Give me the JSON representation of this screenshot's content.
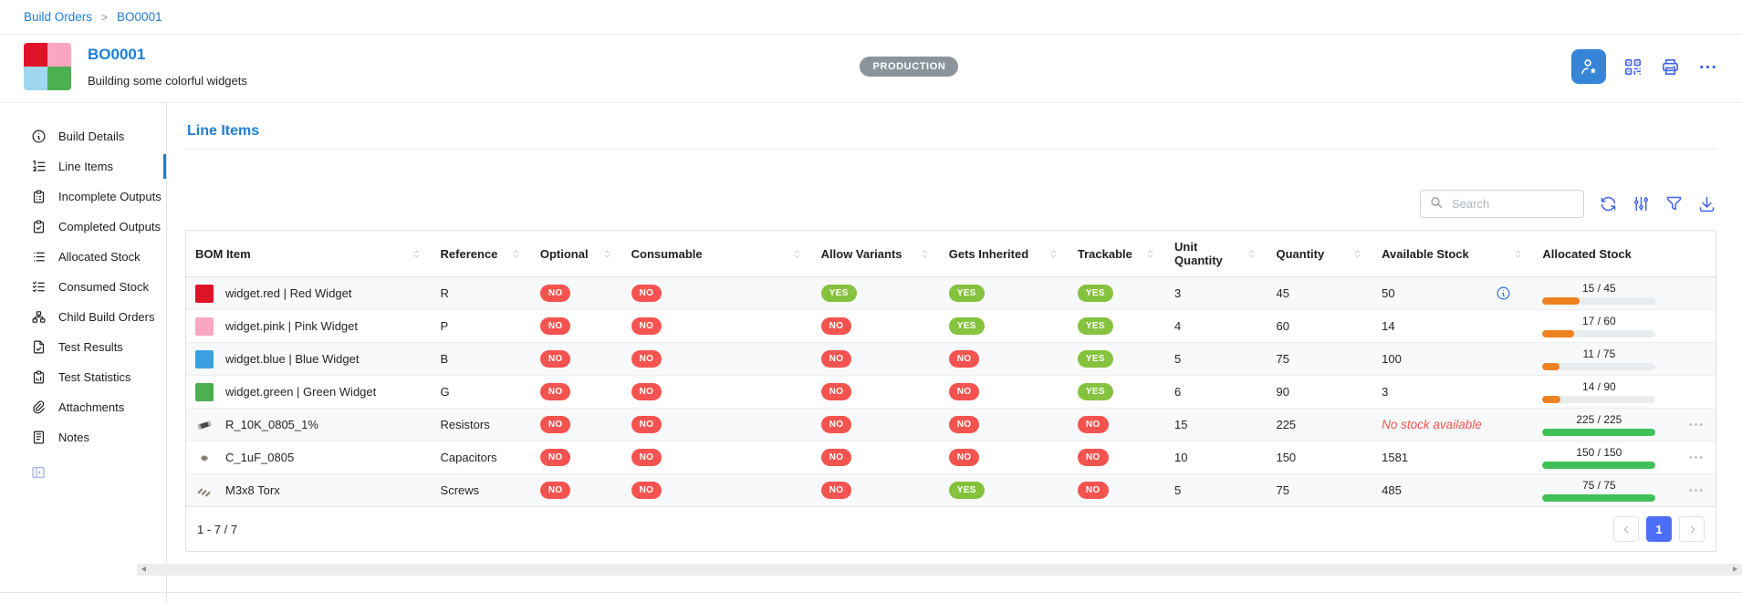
{
  "colors": {
    "accent_blue": "#1c7ed6",
    "toolbar_blue": "#4263eb",
    "admin_button_bg": "#3685d7",
    "pagination_blue": "#4c6ef5",
    "yes_badge": "#85c23d",
    "no_badge": "#f4534f",
    "progress_orange": "#ef8220",
    "progress_green": "#40c057",
    "status_badge_bg": "#8b939b",
    "row_stripe": "#f8f9fa"
  },
  "breadcrumb": {
    "separator": ">",
    "items": [
      "Build Orders",
      "BO0001"
    ]
  },
  "header": {
    "title": "BO0001",
    "subtitle": "Building some colorful widgets",
    "status_badge": "PRODUCTION",
    "thumbnail_colors": [
      "#e01227",
      "#f9a7c0",
      "#9fd7ef",
      "#4caf50"
    ],
    "actions": [
      {
        "name": "admin-user-button",
        "icon": "user-star-icon",
        "primary": true
      },
      {
        "name": "qr-code-button",
        "icon": "qr-code-icon"
      },
      {
        "name": "print-button",
        "icon": "printer-icon"
      },
      {
        "name": "more-actions-button",
        "icon": "ellipsis-icon"
      }
    ]
  },
  "sidebar": {
    "items": [
      {
        "label": "Build Details",
        "icon": "info-circle-icon",
        "active": false
      },
      {
        "label": "Line Items",
        "icon": "numbered-list-icon",
        "active": true
      },
      {
        "label": "Incomplete Outputs",
        "icon": "clipboard-list-icon",
        "active": false
      },
      {
        "label": "Completed Outputs",
        "icon": "clipboard-check-icon",
        "active": false
      },
      {
        "label": "Allocated Stock",
        "icon": "list-icon",
        "active": false
      },
      {
        "label": "Consumed Stock",
        "icon": "list-check-icon",
        "active": false
      },
      {
        "label": "Child Build Orders",
        "icon": "sitemap-icon",
        "active": false
      },
      {
        "label": "Test Results",
        "icon": "file-check-icon",
        "active": false
      },
      {
        "label": "Test Statistics",
        "icon": "clipboard-data-icon",
        "active": false
      },
      {
        "label": "Attachments",
        "icon": "paperclip-icon",
        "active": false
      },
      {
        "label": "Notes",
        "icon": "notes-icon",
        "active": false
      }
    ]
  },
  "panel": {
    "title": "Line Items",
    "search_placeholder": "Search",
    "toolbar": [
      {
        "name": "refresh-button",
        "icon": "refresh-icon"
      },
      {
        "name": "adjust-columns-button",
        "icon": "adjustments-icon"
      },
      {
        "name": "filter-button",
        "icon": "filter-icon"
      },
      {
        "name": "download-button",
        "icon": "download-icon"
      }
    ]
  },
  "table": {
    "columns": [
      {
        "label": "BOM Item",
        "sortable": true
      },
      {
        "label": "Reference",
        "sortable": true
      },
      {
        "label": "Optional",
        "sortable": true
      },
      {
        "label": "Consumable",
        "sortable": true
      },
      {
        "label": "Allow Variants",
        "sortable": true
      },
      {
        "label": "Gets Inherited",
        "sortable": true
      },
      {
        "label": "Trackable",
        "sortable": true
      },
      {
        "label": "Unit Quantity",
        "sortable": true
      },
      {
        "label": "Quantity",
        "sortable": true
      },
      {
        "label": "Available Stock",
        "sortable": true
      },
      {
        "label": "Allocated Stock",
        "sortable": false
      }
    ],
    "rows": [
      {
        "thumb": {
          "type": "color",
          "value": "#e01227"
        },
        "bom_item": "widget.red | Red Widget",
        "reference": "R",
        "optional": "NO",
        "consumable": "NO",
        "allow_variants": "YES",
        "gets_inherited": "YES",
        "trackable": "YES",
        "unit_quantity": "3",
        "quantity": "45",
        "available_stock": "50",
        "no_stock": false,
        "available_info": true,
        "allocated": {
          "label": "15 / 45",
          "percent": 33
        },
        "menu": false
      },
      {
        "thumb": {
          "type": "color",
          "value": "#f9a7c0"
        },
        "bom_item": "widget.pink | Pink Widget",
        "reference": "P",
        "optional": "NO",
        "consumable": "NO",
        "allow_variants": "NO",
        "gets_inherited": "YES",
        "trackable": "YES",
        "unit_quantity": "4",
        "quantity": "60",
        "available_stock": "14",
        "no_stock": false,
        "available_info": false,
        "allocated": {
          "label": "17 / 60",
          "percent": 28
        },
        "menu": false
      },
      {
        "thumb": {
          "type": "color",
          "value": "#3aa0e0"
        },
        "bom_item": "widget.blue | Blue Widget",
        "reference": "B",
        "optional": "NO",
        "consumable": "NO",
        "allow_variants": "NO",
        "gets_inherited": "NO",
        "trackable": "YES",
        "unit_quantity": "5",
        "quantity": "75",
        "available_stock": "100",
        "no_stock": false,
        "available_info": false,
        "allocated": {
          "label": "11 / 75",
          "percent": 15
        },
        "menu": false
      },
      {
        "thumb": {
          "type": "color",
          "value": "#4caf50"
        },
        "bom_item": "widget.green | Green Widget",
        "reference": "G",
        "optional": "NO",
        "consumable": "NO",
        "allow_variants": "NO",
        "gets_inherited": "NO",
        "trackable": "YES",
        "unit_quantity": "6",
        "quantity": "90",
        "available_stock": "3",
        "no_stock": false,
        "available_info": false,
        "allocated": {
          "label": "14 / 90",
          "percent": 16
        },
        "menu": false
      },
      {
        "thumb": {
          "type": "resistor"
        },
        "bom_item": "R_10K_0805_1%",
        "reference": "Resistors",
        "optional": "NO",
        "consumable": "NO",
        "allow_variants": "NO",
        "gets_inherited": "NO",
        "trackable": "NO",
        "unit_quantity": "15",
        "quantity": "225",
        "available_stock": "No stock available",
        "no_stock": true,
        "available_info": false,
        "allocated": {
          "label": "225 / 225",
          "percent": 100
        },
        "menu": true
      },
      {
        "thumb": {
          "type": "capacitor"
        },
        "bom_item": "C_1uF_0805",
        "reference": "Capacitors",
        "optional": "NO",
        "consumable": "NO",
        "allow_variants": "NO",
        "gets_inherited": "NO",
        "trackable": "NO",
        "unit_quantity": "10",
        "quantity": "150",
        "available_stock": "1581",
        "no_stock": false,
        "available_info": false,
        "allocated": {
          "label": "150 / 150",
          "percent": 100
        },
        "menu": true
      },
      {
        "thumb": {
          "type": "screws"
        },
        "bom_item": "M3x8 Torx",
        "reference": "Screws",
        "optional": "NO",
        "consumable": "NO",
        "allow_variants": "NO",
        "gets_inherited": "YES",
        "trackable": "NO",
        "unit_quantity": "5",
        "quantity": "75",
        "available_stock": "485",
        "no_stock": false,
        "available_info": false,
        "allocated": {
          "label": "75 / 75",
          "percent": 100
        },
        "menu": true
      }
    ]
  },
  "footer": {
    "range_label": "1 - 7 / 7",
    "pages": [
      "1"
    ],
    "active_page": "1"
  }
}
